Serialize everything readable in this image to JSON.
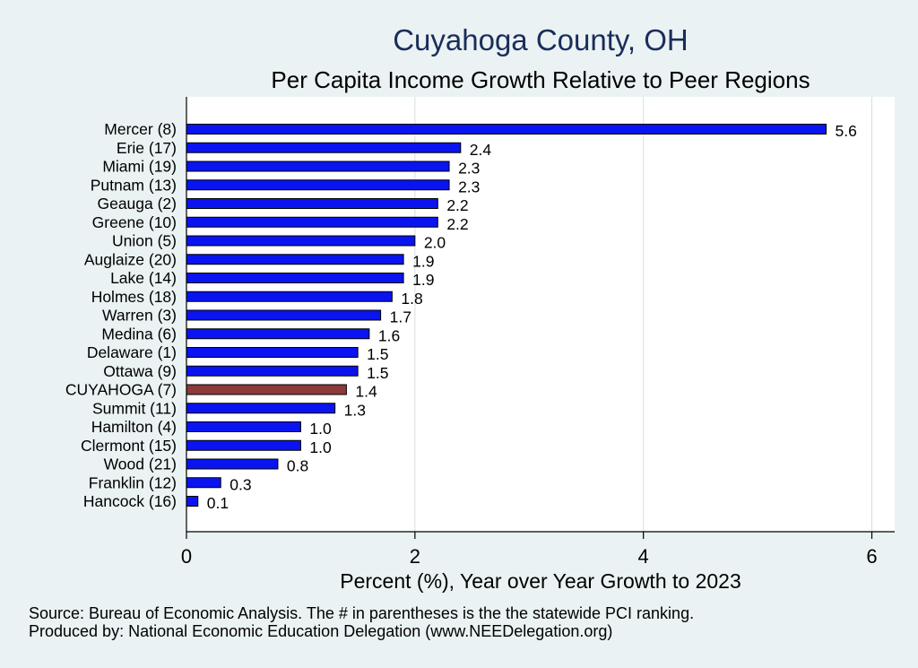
{
  "chart_data": {
    "type": "bar",
    "orientation": "horizontal",
    "title": "Cuyahoga County, OH",
    "subtitle": "Per Capita Income Growth Relative to Peer Regions",
    "xlabel": "Percent (%), Year over Year Growth to 2023",
    "ylabel": "",
    "xlim": [
      0,
      6.2
    ],
    "xticks": [
      "0",
      "2",
      "4",
      "6"
    ],
    "grid": true,
    "legend": "none",
    "categories": [
      "Mercer  (8)",
      "Erie (17)",
      "Miami (19)",
      "Putnam (13)",
      "Geauga  (2)",
      "Greene (10)",
      "Union  (5)",
      "Auglaize (20)",
      "Lake (14)",
      "Holmes (18)",
      "Warren  (3)",
      "Medina  (6)",
      "Delaware  (1)",
      "Ottawa  (9)",
      "CUYAHOGA  (7)",
      "Summit (11)",
      "Hamilton  (4)",
      "Clermont (15)",
      "Wood (21)",
      "Franklin (12)",
      "Hancock (16)"
    ],
    "values": [
      5.6,
      2.4,
      2.3,
      2.3,
      2.2,
      2.2,
      2.0,
      1.9,
      1.9,
      1.8,
      1.7,
      1.6,
      1.5,
      1.5,
      1.4,
      1.3,
      1.0,
      1.0,
      0.8,
      0.3,
      0.1
    ],
    "value_labels": [
      "5.6",
      "2.4",
      "2.3",
      "2.3",
      "2.2",
      "2.2",
      "2.0",
      "1.9",
      "1.9",
      "1.8",
      "1.7",
      "1.6",
      "1.5",
      "1.5",
      "1.4",
      "1.3",
      "1.0",
      "1.0",
      "0.8",
      "0.3",
      "0.1"
    ],
    "highlight_index": 14,
    "colors": {
      "bar": "#0a14f0",
      "highlight": "#8c3a3a",
      "grid": "#d6e0e2",
      "axis": "#000000"
    }
  },
  "footer": {
    "source": "Source: Bureau of Economic Analysis. The # in parentheses is the the statewide PCI ranking.",
    "produced_by": "Produced by: National Economic Education Delegation (www.NEEDelegation.org)"
  }
}
